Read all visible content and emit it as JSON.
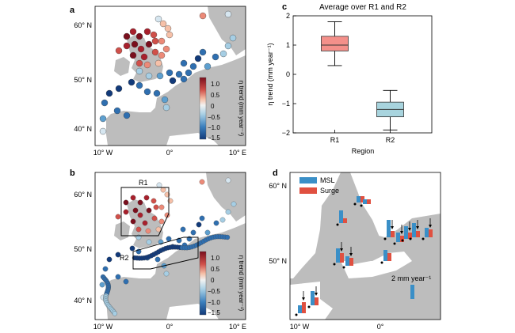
{
  "panels": {
    "a": {
      "label": "a",
      "lat_ticks": [
        "60° N",
        "50° N",
        "40° N"
      ],
      "lon_ticks": [
        "10° W",
        "0°",
        "10° E"
      ],
      "colorbar": {
        "title": "η trend (mm year⁻¹)",
        "ticks": [
          "1.0",
          "0.5",
          "0",
          "−0.5",
          "−1.0",
          "−1.5"
        ]
      }
    },
    "b": {
      "label": "b",
      "region_labels": [
        "R1",
        "R2"
      ],
      "lat_ticks": [
        "60° N",
        "50° N",
        "40° N"
      ],
      "lon_ticks": [
        "10° W",
        "0°",
        "10° E"
      ],
      "colorbar": {
        "title": "η trend (mm year⁻¹)",
        "ticks": [
          "1.0",
          "0.5",
          "0",
          "−0.5",
          "−1.0",
          "−1.5"
        ]
      }
    },
    "d": {
      "label": "d",
      "legend": [
        "MSL",
        "Surge"
      ],
      "scale_label": "2 mm year⁻¹",
      "lat_ticks": [
        "60° N",
        "50° N"
      ],
      "lon_ticks": [
        "10° W",
        "0°"
      ],
      "colors": {
        "msl": "#3a8fc7",
        "surge": "#e05040"
      }
    }
  },
  "chart_data": {
    "type": "box",
    "label": "c",
    "title": "Average over R1 and R2",
    "xlabel": "Region",
    "ylabel": "η trend (mm year⁻¹)",
    "categories": [
      "R1",
      "R2"
    ],
    "ylim": [
      -2,
      2
    ],
    "yticks": [
      "2",
      "1",
      "0",
      "−1",
      "−2"
    ],
    "boxes": [
      {
        "name": "R1",
        "min": 0.3,
        "q1": 0.8,
        "median": 1.0,
        "q3": 1.3,
        "max": 1.8,
        "color": "#f4908a"
      },
      {
        "name": "R2",
        "min": -1.9,
        "q1": -1.45,
        "median": -1.2,
        "q3": -0.95,
        "max": -0.55,
        "color": "#a8d4de"
      }
    ]
  }
}
